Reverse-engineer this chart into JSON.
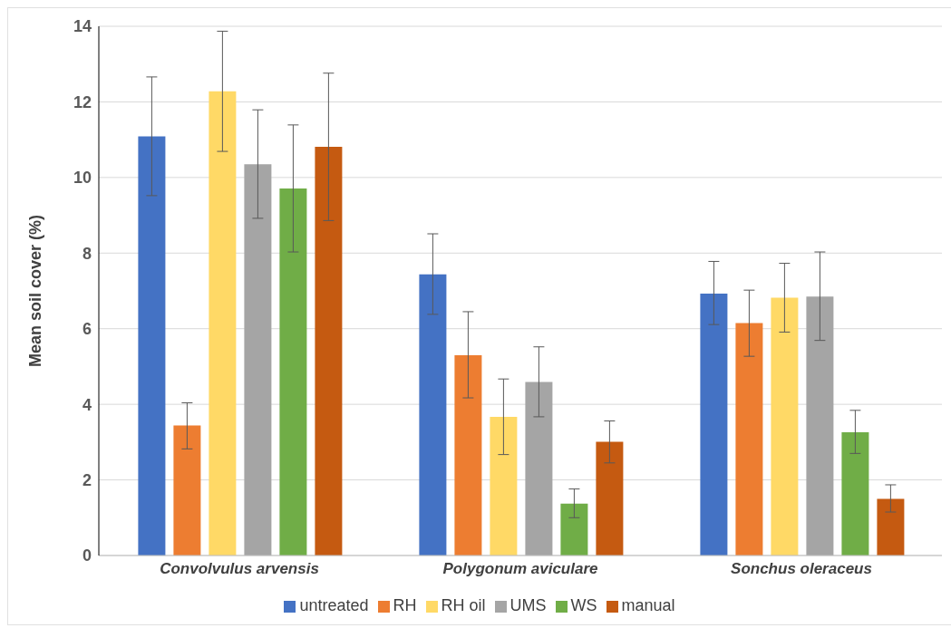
{
  "chart_data": {
    "type": "bar",
    "ylabel": "Mean soil cover (%)",
    "categories": [
      "Convolvulus arvensis",
      "Polygonum aviculare",
      "Sonchus oleraceus"
    ],
    "series": [
      {
        "name": "untreated",
        "color": "#4472c4",
        "values": [
          11.09,
          7.44,
          6.93
        ],
        "errors": [
          [
            9.52,
            12.66
          ],
          [
            6.38,
            8.51
          ],
          [
            6.11,
            7.78
          ]
        ]
      },
      {
        "name": "RH",
        "color": "#ed7d31",
        "values": [
          3.44,
          5.3,
          6.15
        ],
        "errors": [
          [
            2.82,
            4.04
          ],
          [
            4.17,
            6.45
          ],
          [
            5.27,
            7.02
          ]
        ]
      },
      {
        "name": "RH oil",
        "color": "#ffd966",
        "values": [
          12.28,
          3.67,
          6.82
        ],
        "errors": [
          [
            10.69,
            13.87
          ],
          [
            2.67,
            4.67
          ],
          [
            5.91,
            7.73
          ]
        ]
      },
      {
        "name": "UMS",
        "color": "#a5a5a5",
        "values": [
          10.35,
          4.59,
          6.85
        ],
        "errors": [
          [
            8.92,
            11.79
          ],
          [
            3.67,
            5.52
          ],
          [
            5.69,
            8.03
          ]
        ]
      },
      {
        "name": "WS",
        "color": "#70ad47",
        "values": [
          9.71,
          1.37,
          3.26
        ],
        "errors": [
          [
            8.03,
            11.39
          ],
          [
            1.0,
            1.76
          ],
          [
            2.7,
            3.84
          ]
        ]
      },
      {
        "name": "manual",
        "color": "#c55a11",
        "values": [
          10.81,
          3.01,
          1.5
        ],
        "errors": [
          [
            8.86,
            12.76
          ],
          [
            2.45,
            3.56
          ],
          [
            1.15,
            1.87
          ]
        ]
      }
    ],
    "ylim": [
      0,
      14
    ],
    "yticks": [
      0,
      2,
      4,
      6,
      8,
      10,
      12,
      14
    ],
    "grid": "y",
    "legend": "bottom"
  }
}
